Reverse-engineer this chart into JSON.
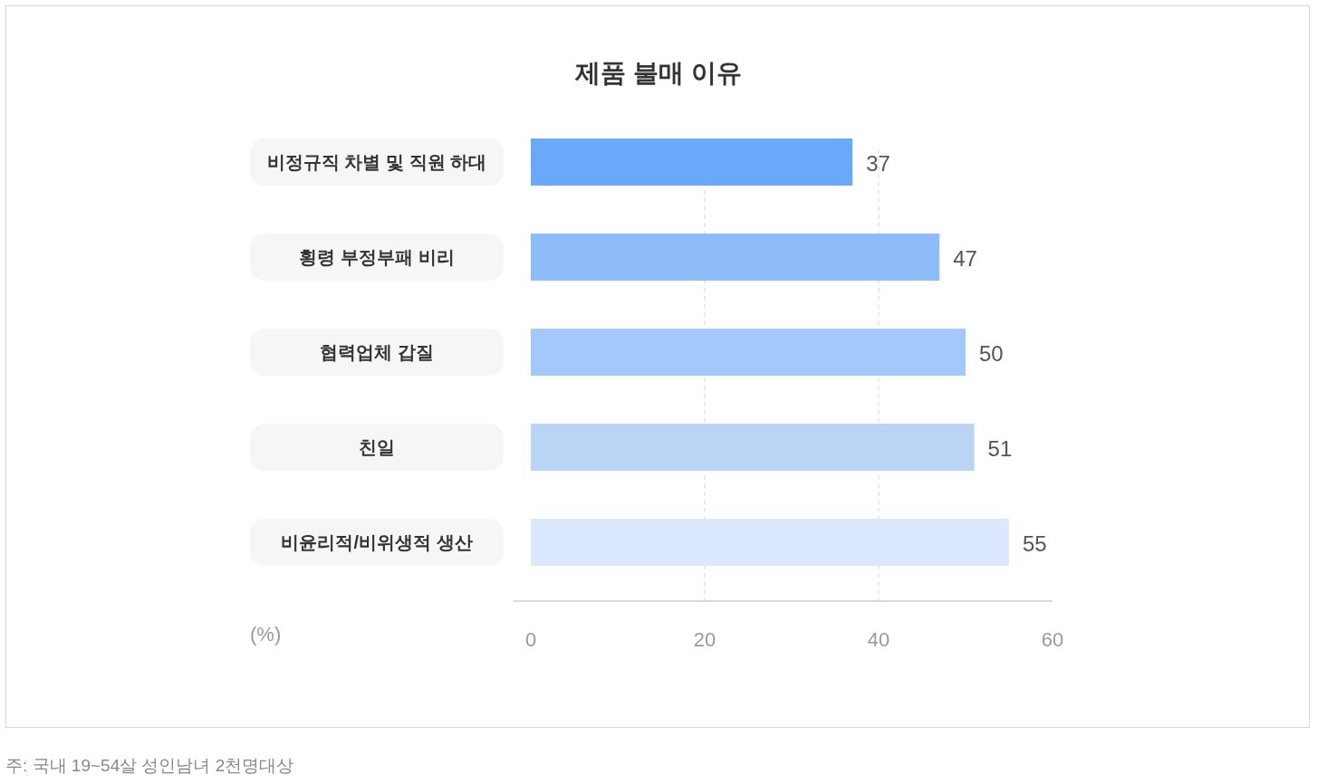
{
  "chart_data": {
    "type": "bar",
    "orientation": "horizontal",
    "title": "제품 불매 이유",
    "xlabel": "(%)",
    "categories": [
      "비정규직 차별 및 직원 하대",
      "횡령 부정부패 비리",
      "협력업체 갑질",
      "친일",
      "비윤리적/비위생적 생산"
    ],
    "values": [
      37,
      47,
      50,
      51,
      55
    ],
    "colors": [
      "#6aa9f9",
      "#8dbcf9",
      "#a4c8fa",
      "#bad4f5",
      "#dbe8fd"
    ],
    "xlim": [
      0,
      60
    ],
    "xticks": [
      0,
      20,
      40,
      60
    ],
    "grid": "x",
    "data_labels": true,
    "annotations": [
      "주: 국내 19~54살 성인남녀 2천명대상"
    ]
  }
}
